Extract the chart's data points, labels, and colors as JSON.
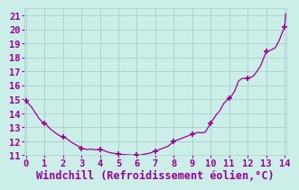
{
  "title": "",
  "xlabel": "Windchill (Refroidissement éolien,°C)",
  "ylabel": "",
  "bg_color": "#cceee8",
  "line_color": "#990099",
  "marker_color": "#990099",
  "xlim": [
    -0.1,
    14.1
  ],
  "ylim": [
    11,
    21.5
  ],
  "xticks": [
    0,
    1,
    2,
    3,
    4,
    5,
    6,
    7,
    8,
    9,
    10,
    11,
    12,
    13,
    14
  ],
  "yticks": [
    11,
    12,
    13,
    14,
    15,
    16,
    17,
    18,
    19,
    20,
    21
  ],
  "x": [
    0.0,
    0.1,
    0.2,
    0.3,
    0.4,
    0.5,
    0.6,
    0.7,
    0.8,
    0.9,
    1.0,
    1.1,
    1.2,
    1.3,
    1.5,
    1.7,
    1.9,
    2.0,
    2.1,
    2.2,
    2.3,
    2.5,
    2.7,
    2.9,
    3.0,
    3.1,
    3.2,
    3.3,
    3.5,
    3.7,
    4.0,
    4.1,
    4.2,
    4.3,
    4.5,
    4.7,
    5.0,
    5.1,
    5.2,
    5.3,
    5.5,
    5.7,
    6.0,
    6.1,
    6.2,
    6.3,
    6.5,
    6.7,
    7.0,
    7.1,
    7.2,
    7.3,
    7.5,
    7.7,
    8.0,
    8.1,
    8.2,
    8.3,
    8.5,
    8.7,
    9.0,
    9.1,
    9.2,
    9.3,
    9.4,
    9.5,
    9.7,
    10.0,
    10.1,
    10.2,
    10.3,
    10.5,
    10.7,
    11.0,
    11.1,
    11.2,
    11.3,
    11.5,
    11.7,
    12.0,
    12.1,
    12.2,
    12.3,
    12.5,
    12.7,
    13.0,
    13.1,
    13.2,
    13.3,
    13.5,
    13.7,
    14.0,
    14.05
  ],
  "y": [
    14.9,
    14.75,
    14.6,
    14.45,
    14.25,
    14.05,
    13.85,
    13.65,
    13.5,
    13.35,
    13.3,
    13.2,
    13.05,
    12.9,
    12.7,
    12.5,
    12.35,
    12.3,
    12.25,
    12.2,
    12.1,
    11.9,
    11.75,
    11.6,
    11.5,
    11.45,
    11.45,
    11.4,
    11.45,
    11.4,
    11.4,
    11.38,
    11.35,
    11.3,
    11.2,
    11.15,
    11.1,
    11.08,
    11.06,
    11.05,
    11.03,
    11.02,
    11.0,
    11.0,
    11.02,
    11.05,
    11.1,
    11.15,
    11.3,
    11.35,
    11.4,
    11.45,
    11.55,
    11.65,
    12.0,
    12.05,
    12.1,
    12.15,
    12.25,
    12.35,
    12.5,
    12.55,
    12.6,
    12.62,
    12.63,
    12.6,
    12.65,
    13.3,
    13.5,
    13.7,
    13.9,
    14.2,
    14.7,
    15.1,
    15.2,
    15.4,
    15.6,
    16.3,
    16.5,
    16.5,
    16.55,
    16.6,
    16.65,
    17.0,
    17.4,
    18.4,
    18.45,
    18.5,
    18.55,
    18.7,
    19.2,
    20.2,
    21.1
  ],
  "marker_x": [
    0.0,
    1.0,
    2.0,
    3.0,
    4.0,
    5.0,
    6.0,
    7.0,
    8.0,
    9.0,
    10.0,
    11.0,
    12.0,
    13.0,
    14.0
  ],
  "marker_y": [
    14.9,
    13.3,
    12.3,
    11.5,
    11.4,
    11.1,
    11.0,
    11.3,
    12.0,
    12.5,
    13.3,
    15.1,
    16.5,
    18.4,
    20.2
  ],
  "grid_color": "#aacccc",
  "font_color": "#990099",
  "tick_fontsize": 7.5,
  "xlabel_fontsize": 8.5
}
